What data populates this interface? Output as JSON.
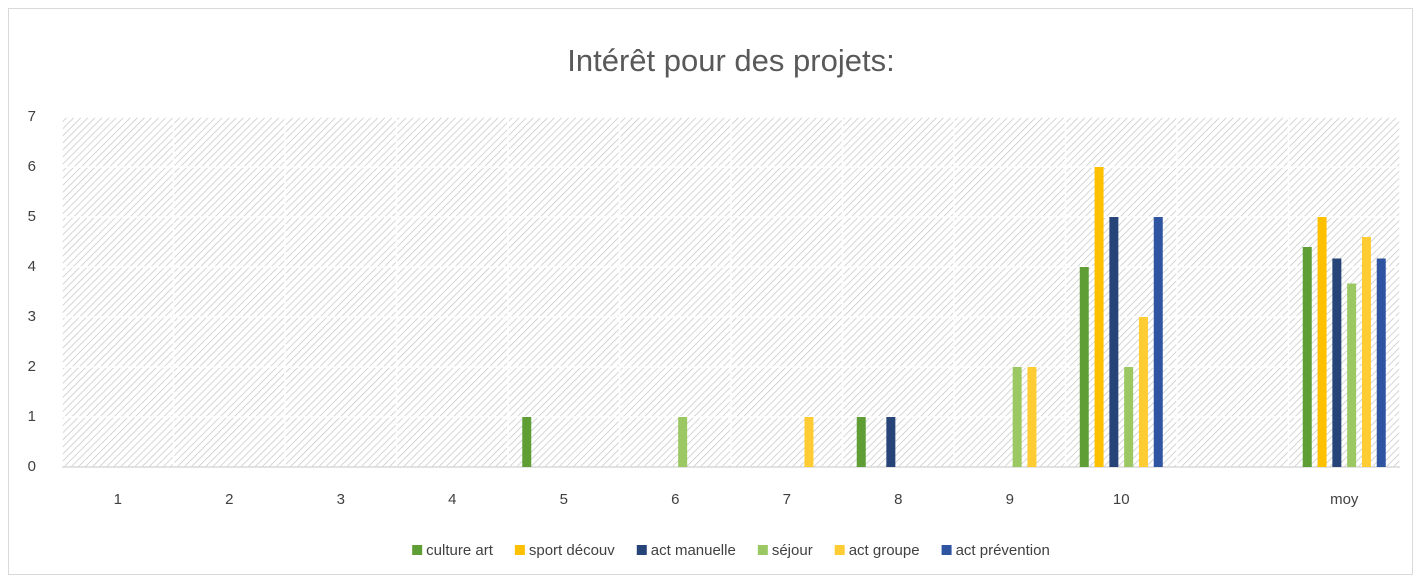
{
  "chart_data": {
    "type": "bar",
    "title": "Intérêt pour des projets:",
    "categories": [
      "1",
      "2",
      "3",
      "4",
      "5",
      "6",
      "7",
      "8",
      "9",
      "10",
      null,
      "moy"
    ],
    "series": [
      {
        "name": "culture art",
        "color": "#5f9e35",
        "values": [
          0,
          0,
          0,
          0,
          1,
          0,
          0,
          1,
          0,
          4,
          null,
          4.4
        ]
      },
      {
        "name": "sport découv",
        "color": "#ffc000",
        "values": [
          0,
          0,
          0,
          0,
          0,
          0,
          0,
          0,
          0,
          6,
          null,
          5
        ]
      },
      {
        "name": "act manuelle",
        "color": "#264478",
        "values": [
          0,
          0,
          0,
          0,
          0,
          0,
          0,
          1,
          0,
          5,
          null,
          4.17
        ]
      },
      {
        "name": "séjour",
        "color": "#9bc863",
        "values": [
          0,
          0,
          0,
          0,
          0,
          1,
          0,
          0,
          2,
          2,
          null,
          3.67
        ]
      },
      {
        "name": "act groupe",
        "color": "#ffcd33",
        "values": [
          0,
          0,
          0,
          0,
          0,
          0,
          1,
          0,
          2,
          3,
          null,
          4.6
        ]
      },
      {
        "name": "act prévention",
        "color": "#2f55a2",
        "values": [
          0,
          0,
          0,
          0,
          0,
          0,
          0,
          0,
          0,
          5,
          null,
          4.17
        ]
      }
    ],
    "ylim": [
      0,
      7
    ],
    "yticks": [
      0,
      1,
      2,
      3,
      4,
      5,
      6,
      7
    ],
    "grid": true,
    "legend": "bottom"
  }
}
